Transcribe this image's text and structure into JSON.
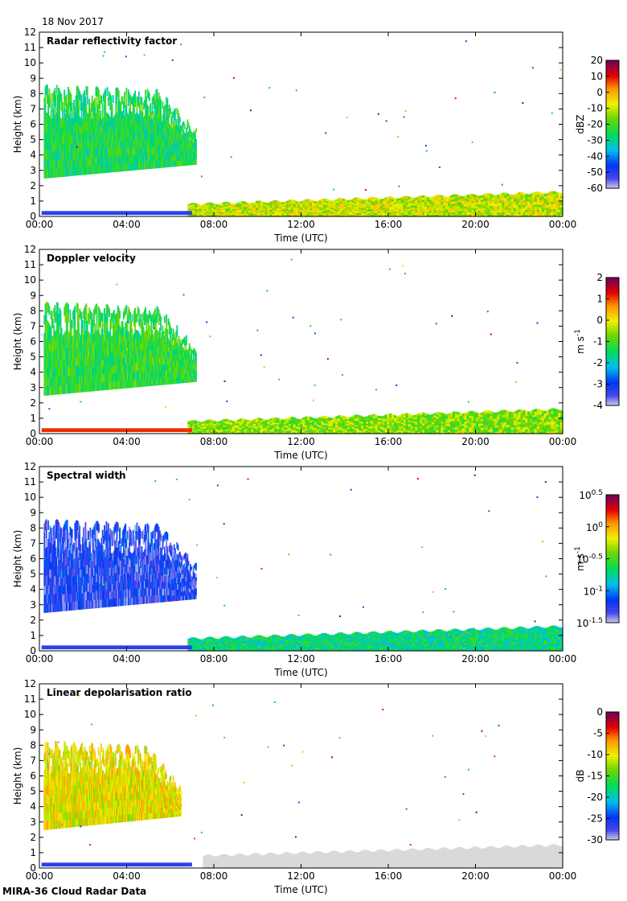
{
  "date": "18 Nov 2017",
  "footer": "MIRA-36 Cloud Radar Data",
  "chart_data": [
    {
      "type": "heatmap",
      "title": "Radar reflectivity factor",
      "xlabel": "Time (UTC)",
      "ylabel": "Height (km)",
      "x_ticks": [
        "00:00",
        "04:00",
        "08:00",
        "12:00",
        "16:00",
        "20:00",
        "00:00"
      ],
      "xlim": [
        0,
        24
      ],
      "ylim": [
        0,
        12
      ],
      "y_ticks": [
        "0",
        "1",
        "2",
        "3",
        "4",
        "5",
        "6",
        "7",
        "8",
        "9",
        "10",
        "11",
        "12"
      ],
      "colorbar": {
        "label": "dBZ",
        "min": -60,
        "max": 20,
        "ticks": [
          "20",
          "10",
          "0",
          "-10",
          "-20",
          "-30",
          "-40",
          "-50",
          "-60"
        ]
      },
      "features": [
        {
          "name": "ice cloud",
          "time_range": [
            0.2,
            7.2
          ],
          "height_range": [
            2.5,
            8.3
          ],
          "typical_value": -25
        },
        {
          "name": "boundary layer cloud",
          "time_range": [
            6.8,
            24
          ],
          "height_range": [
            0,
            1.6
          ],
          "typical_value": -10
        }
      ]
    },
    {
      "type": "heatmap",
      "title": "Doppler velocity",
      "xlabel": "Time (UTC)",
      "ylabel": "Height (km)",
      "x_ticks": [
        "00:00",
        "04:00",
        "08:00",
        "12:00",
        "16:00",
        "20:00",
        "00:00"
      ],
      "xlim": [
        0,
        24
      ],
      "ylim": [
        0,
        12
      ],
      "y_ticks": [
        "0",
        "1",
        "2",
        "3",
        "4",
        "5",
        "6",
        "7",
        "8",
        "9",
        "10",
        "11",
        "12"
      ],
      "colorbar": {
        "label": "m s-1",
        "label_base": "m s",
        "label_sup": "-1",
        "min": -4,
        "max": 2,
        "ticks": [
          "2",
          "1",
          "0",
          "-1",
          "-2",
          "-3",
          "-4"
        ]
      },
      "features": [
        {
          "name": "ice cloud",
          "time_range": [
            0.2,
            7.2
          ],
          "height_range": [
            2.5,
            8.3
          ],
          "typical_value": -1.2
        },
        {
          "name": "boundary layer cloud",
          "time_range": [
            6.8,
            24
          ],
          "height_range": [
            0,
            1.6
          ],
          "typical_value": -0.6
        }
      ]
    },
    {
      "type": "heatmap",
      "title": "Spectral width",
      "xlabel": "Time (UTC)",
      "ylabel": "Height (km)",
      "x_ticks": [
        "00:00",
        "04:00",
        "08:00",
        "12:00",
        "16:00",
        "20:00",
        "00:00"
      ],
      "xlim": [
        0,
        24
      ],
      "ylim": [
        0,
        12
      ],
      "y_ticks": [
        "0",
        "1",
        "2",
        "3",
        "4",
        "5",
        "6",
        "7",
        "8",
        "9",
        "10",
        "11",
        "12"
      ],
      "colorbar": {
        "label": "m s-1",
        "label_base": "m s",
        "label_sup": "-1",
        "scale": "log10",
        "min": -1.5,
        "max": 0.5,
        "ticks": [
          {
            "base": "10",
            "exp": "0.5"
          },
          {
            "base": "10",
            "exp": "0"
          },
          {
            "base": "10",
            "exp": "-0.5"
          },
          {
            "base": "10",
            "exp": "-1"
          },
          {
            "base": "10",
            "exp": "-1.5"
          }
        ]
      },
      "features": [
        {
          "name": "ice cloud",
          "time_range": [
            0.2,
            7.2
          ],
          "height_range": [
            2.5,
            8.3
          ],
          "typical_value": -1.25
        },
        {
          "name": "boundary layer cloud",
          "time_range": [
            6.8,
            24
          ],
          "height_range": [
            0,
            1.6
          ],
          "typical_value": -0.7
        }
      ]
    },
    {
      "type": "heatmap",
      "title": "Linear depolarisation ratio",
      "xlabel": "Time (UTC)",
      "ylabel": "Height (km)",
      "x_ticks": [
        "00:00",
        "04:00",
        "08:00",
        "12:00",
        "16:00",
        "20:00",
        "00:00"
      ],
      "xlim": [
        0,
        24
      ],
      "ylim": [
        0,
        12
      ],
      "y_ticks": [
        "0",
        "1",
        "2",
        "3",
        "4",
        "5",
        "6",
        "7",
        "8",
        "9",
        "10",
        "11",
        "12"
      ],
      "colorbar": {
        "label": "dB",
        "min": -30,
        "max": 0,
        "ticks": [
          "0",
          "-5",
          "-10",
          "-15",
          "-20",
          "-25",
          "-30"
        ]
      },
      "features": [
        {
          "name": "sparse ice returns",
          "time_range": [
            0.2,
            6.5
          ],
          "height_range": [
            2.5,
            8.0
          ],
          "typical_value": -10
        },
        {
          "name": "boundary layer (masked)",
          "time_range": [
            7.5,
            24
          ],
          "height_range": [
            0,
            1.5
          ],
          "typical_value": null
        }
      ]
    }
  ]
}
